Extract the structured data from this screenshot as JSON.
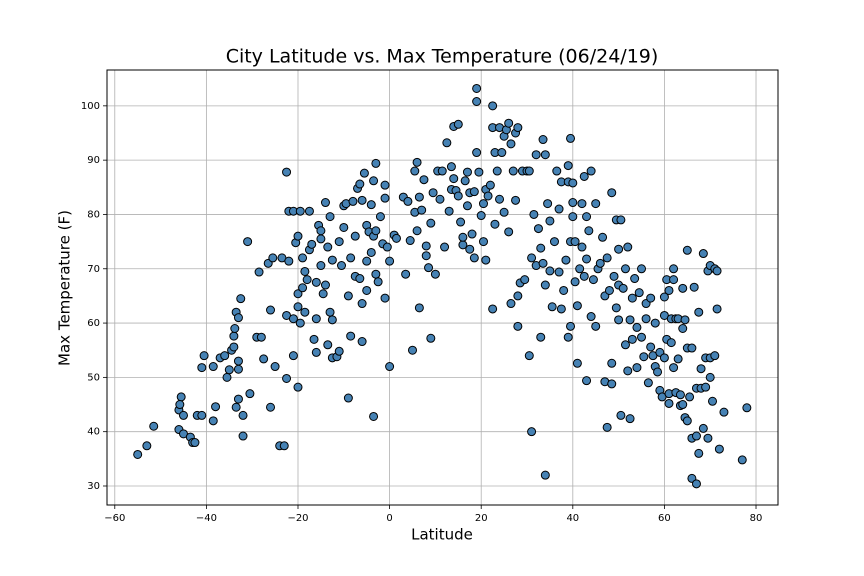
{
  "chart_data": {
    "type": "scatter",
    "title": "City Latitude vs. Max Temperature (06/24/19)",
    "xlabel": "Latitude",
    "ylabel": "Max Temperature (F)",
    "color": "#4682b4",
    "edgecolor": "#000000",
    "grid": true,
    "xlim": [
      -61.7,
      84.8
    ],
    "ylim": [
      26.5,
      106.6
    ],
    "xticks": [
      {
        "value": -60,
        "label": "−60"
      },
      {
        "value": -40,
        "label": "−40"
      },
      {
        "value": -20,
        "label": "−20"
      },
      0,
      20,
      40,
      60,
      80
    ],
    "yticks": [
      30,
      40,
      50,
      60,
      70,
      80,
      90,
      100
    ],
    "x": [
      -55,
      -53,
      -51.5,
      -46,
      -46,
      -45.5,
      -45.8,
      -45,
      -45,
      -43.5,
      -43,
      -42.5,
      -42,
      -41,
      -41,
      -40.5,
      -38.5,
      -38,
      -38.5,
      -37,
      -36,
      -35.5,
      -35,
      -34.5,
      -34,
      -34,
      -33.8,
      -33.5,
      -33,
      -33,
      -33,
      -32.5,
      -33.5,
      -33,
      -32,
      -32,
      -31,
      -30.5,
      -29,
      -28.5,
      -28,
      -27.5,
      -26.5,
      -26,
      -26,
      -25.5,
      -25,
      -24,
      -23,
      -22.5,
      -23.5,
      -22.5,
      -22,
      -22.5,
      -22,
      -21,
      -21,
      -21,
      -20.5,
      -20,
      -20,
      -20,
      -20,
      -19.5,
      -19.5,
      -19,
      -19,
      -18.5,
      -18.5,
      -18,
      -17.5,
      -17.5,
      -17,
      -16.5,
      -16,
      -16,
      -16,
      -15.5,
      -15,
      -15,
      -15,
      -14.5,
      -14,
      -14,
      -13.5,
      -13.5,
      -13,
      -13,
      -12.5,
      -12.5,
      -12.5,
      -11.5,
      -11,
      -11,
      -10.5,
      -10,
      -10,
      -9.5,
      -9,
      -9,
      -8.5,
      -8.5,
      -8,
      -7.5,
      -7.5,
      -7,
      -6.5,
      -6.5,
      -6,
      -6,
      -6,
      -5.5,
      -5,
      -5,
      -5,
      -4.5,
      -4,
      -4,
      -3.5,
      -3.5,
      -3.5,
      -3,
      -3,
      -3,
      -2.5,
      -2,
      -1.5,
      -1,
      -1,
      -1,
      -0.5,
      0,
      0,
      1,
      1.5,
      3,
      3.5,
      4,
      4.5,
      5,
      5.5,
      5.5,
      6,
      6,
      6.5,
      6.5,
      7,
      7.5,
      8,
      8,
      8.5,
      9,
      9,
      9.5,
      10,
      10.5,
      11,
      11.5,
      12,
      12.5,
      13,
      13.5,
      13.5,
      14,
      14,
      14.5,
      15,
      15,
      15.5,
      16,
      16,
      16.5,
      17,
      17,
      17.5,
      17.5,
      18,
      18.5,
      18.5,
      19,
      19,
      19,
      19.5,
      20,
      20.5,
      20.5,
      21,
      21,
      21.5,
      22,
      22.5,
      22.5,
      22.5,
      23,
      23,
      23.5,
      24,
      24,
      24.5,
      25,
      25,
      25.5,
      26,
      26,
      26.5,
      26.5,
      27,
      27.5,
      27.5,
      28,
      28,
      28,
      28.5,
      29,
      29.5,
      30,
      30.5,
      30.5,
      31,
      31,
      31.5,
      32,
      32,
      32.5,
      33,
      33,
      33.5,
      33.5,
      34,
      34,
      34,
      34.5,
      35,
      35,
      35.5,
      36,
      36.5,
      37,
      37,
      37.5,
      37.5,
      38,
      38.5,
      39,
      39,
      39,
      39.5,
      39.5,
      39.5,
      40,
      40,
      40,
      40.5,
      40.5,
      41,
      41,
      41.5,
      42,
      42,
      42.5,
      42.5,
      43,
      43,
      43,
      43.5,
      44,
      44,
      44.5,
      45,
      45,
      45.5,
      46,
      46.5,
      47,
      47,
      47.5,
      47.5,
      48,
      48.5,
      48.5,
      48.5,
      49,
      49.5,
      49.5,
      50,
      50,
      50,
      50.5,
      50.5,
      51,
      51.5,
      51.5,
      52,
      52,
      52.5,
      52.5,
      53,
      53,
      53.5,
      54,
      54,
      54.5,
      55,
      55,
      55.5,
      56,
      56,
      56.5,
      57,
      57,
      57.5,
      58,
      58,
      58.5,
      59,
      59,
      59.5,
      60,
      60,
      60,
      60.5,
      60.5,
      61,
      61,
      61,
      61.5,
      61.5,
      62,
      62,
      62,
      62.5,
      62.5,
      63,
      63,
      63.5,
      63.5,
      64,
      64,
      64,
      64.5,
      64.5,
      65,
      65,
      65,
      65.5,
      66,
      66,
      66,
      66.5,
      67,
      67,
      67,
      67.5,
      67.5,
      68,
      68,
      68.5,
      68.5,
      69,
      69,
      69.5,
      69.5,
      70,
      70,
      70,
      70.5,
      71,
      71,
      71.5,
      71.5,
      72,
      73,
      77,
      78
    ],
    "values": [
      35.8,
      37.4,
      41,
      40.4,
      44,
      46.4,
      45,
      43,
      39.6,
      39,
      38,
      38,
      43,
      43,
      51.8,
      54,
      42,
      44.6,
      52,
      53.6,
      54,
      50,
      51.4,
      55,
      55.6,
      57.6,
      59,
      62,
      61,
      53,
      51.5,
      64.5,
      44.5,
      46,
      43,
      39.2,
      75,
      47,
      57.4,
      69.4,
      57.4,
      53.4,
      71,
      62.4,
      44.5,
      72,
      52,
      37.4,
      37.4,
      49.8,
      72,
      61.4,
      71.4,
      87.8,
      80.6,
      60.8,
      80.6,
      54,
      74.8,
      63,
      48.2,
      65.4,
      76,
      80.6,
      60,
      66.5,
      72,
      69.5,
      62,
      68,
      73.5,
      80.6,
      74.5,
      57,
      67.5,
      54.6,
      60.8,
      78,
      75.5,
      77,
      70.6,
      65.4,
      67,
      82.2,
      56,
      74,
      79.6,
      62,
      71.6,
      60.6,
      53.6,
      53.8,
      75,
      54.8,
      70.6,
      77.6,
      81.6,
      82,
      65,
      46.2,
      57.6,
      72,
      82.4,
      76,
      68.6,
      84.8,
      85.6,
      68.2,
      63.6,
      56.6,
      82.6,
      87.6,
      78,
      71.4,
      66,
      76.8,
      81.8,
      73,
      86.2,
      76,
      42.8,
      89.4,
      77,
      69,
      67.6,
      79.6,
      74.6,
      83,
      64.6,
      85.4,
      74,
      71.4,
      52,
      76.2,
      75.6,
      83.2,
      69,
      82.4,
      75.2,
      55,
      80.4,
      88,
      89.6,
      77,
      62.8,
      83.2,
      80.8,
      86.4,
      74.2,
      72.4,
      70.2,
      78.4,
      57.2,
      84,
      69,
      88,
      82.8,
      88,
      74,
      93.2,
      80.6,
      84.6,
      88.8,
      96.2,
      86.6,
      84.4,
      96.6,
      83.4,
      78.6,
      74.4,
      75.8,
      86.2,
      81.6,
      87.8,
      84,
      73.6,
      76.4,
      72,
      84.2,
      100.8,
      103.2,
      91.4,
      87.8,
      79.8,
      75,
      82,
      84.6,
      71.6,
      83.4,
      85.4,
      62.6,
      96,
      100,
      91.4,
      78.2,
      88,
      82.8,
      96,
      91.4,
      80.4,
      94.4,
      95.6,
      76.8,
      96.8,
      93,
      63.6,
      88,
      95,
      82.6,
      96,
      65,
      59.4,
      67.4,
      88,
      68,
      88,
      88,
      54,
      40,
      72,
      80,
      91,
      70.6,
      77.4,
      73.8,
      57.4,
      93.8,
      71,
      91,
      67,
      32,
      82,
      78.8,
      69.6,
      63,
      75,
      88,
      81,
      69.4,
      86,
      62.6,
      66,
      71.6,
      89,
      86,
      57.4,
      94,
      75,
      59.4,
      85.8,
      82.2,
      79.6,
      75,
      67.6,
      63.2,
      52.6,
      70,
      74,
      82,
      87,
      68.6,
      79.6,
      71.8,
      49.4,
      77,
      88,
      61.2,
      68,
      82,
      59.4,
      70,
      71,
      75.8,
      49.2,
      65,
      72,
      40.8,
      66,
      84,
      52.6,
      48.8,
      68.6,
      62.8,
      79,
      60.6,
      67,
      73.6,
      43,
      79,
      66.4,
      70,
      56,
      74,
      51.2,
      60.6,
      42.4,
      64.6,
      57,
      68.2,
      59.2,
      51.8,
      65.6,
      70,
      57.4,
      53.8,
      63.6,
      60.8,
      49,
      64.6,
      55.6,
      54,
      52,
      60,
      51,
      54.6,
      47.6,
      46.4,
      61.4,
      64.8,
      53.6,
      68,
      57,
      66,
      45.2,
      47,
      60.8,
      56.4,
      70,
      68,
      51.8,
      60.8,
      47.2,
      60.8,
      53.4,
      46.8,
      44.8,
      66.4,
      59,
      45,
      60.6,
      42.6,
      73.4,
      55.4,
      42,
      46.4,
      55.4,
      38.8,
      31.4,
      66.6,
      48,
      39.2,
      30.4,
      62,
      36,
      51.6,
      48,
      72.8,
      40.6,
      53.6,
      48.2,
      69.6,
      38.8,
      70.6,
      53.6,
      50,
      45.6,
      54,
      70,
      69.6,
      62.6,
      36.8,
      43.6,
      34.8,
      44.4
    ]
  }
}
